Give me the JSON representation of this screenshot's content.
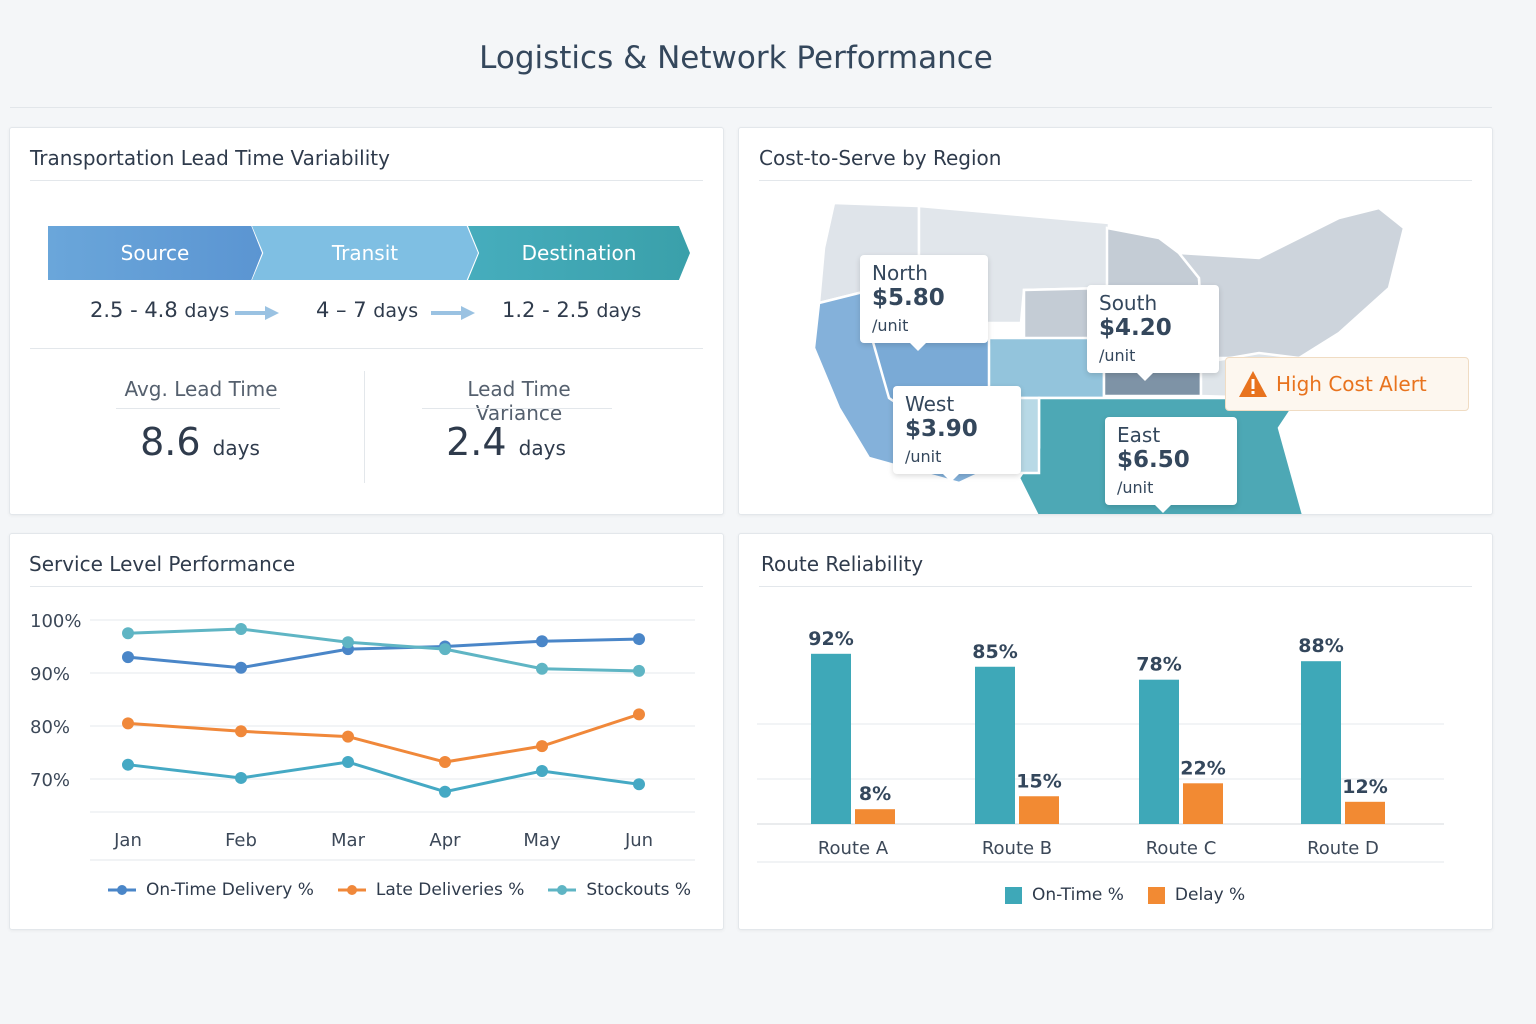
{
  "title": "Logistics & Network Performance",
  "lead_time": {
    "title": "Transportation Lead Time Variability",
    "stages": [
      {
        "label": "Source",
        "range": "2.5 - 4.8",
        "unit": "days",
        "color": "#5b9bd5"
      },
      {
        "label": "Transit",
        "range": "4 – 7",
        "unit": "days",
        "color": "#7dbde0"
      },
      {
        "label": "Destination",
        "range": "1.2 - 2.5",
        "unit": "days",
        "color": "#3aa3ad"
      }
    ],
    "avg_label": "Avg. Lead Time",
    "avg_value": "8.6",
    "avg_unit": "days",
    "var_label": "Lead Time Variance",
    "var_value": "2.4",
    "var_unit": "days"
  },
  "cost": {
    "title": "Cost-to-Serve by Region",
    "regions": [
      {
        "name": "North",
        "price": "$5.80",
        "unit": "/unit"
      },
      {
        "name": "South",
        "price": "$4.20",
        "unit": "/unit"
      },
      {
        "name": "West",
        "price": "$3.90",
        "unit": "/unit"
      },
      {
        "name": "East",
        "price": "$6.50",
        "unit": "/unit"
      }
    ],
    "alert": "High Cost Alert",
    "alert_icon": "warning-triangle-icon",
    "alert_color": "#e8731e"
  },
  "chart_data": [
    {
      "type": "line",
      "title": "Service Level Performance",
      "categories": [
        "Jan",
        "Feb",
        "Mar",
        "Apr",
        "May",
        "Jun"
      ],
      "ylim": [
        62,
        100
      ],
      "yticks": [
        "100%",
        "90%",
        "80%",
        "70%"
      ],
      "grid": true,
      "legend": "bottom",
      "series": [
        {
          "name": "On-Time Delivery %",
          "color": "#4a86c8",
          "values": [
            93,
            91,
            94.5,
            95,
            96,
            96.4
          ]
        },
        {
          "name": "Late Deliveries %",
          "color": "#f0883a",
          "values": [
            80.5,
            79,
            78,
            73.2,
            76.2,
            82.2
          ]
        },
        {
          "name": "Stockouts %",
          "color": "#5fb5c4",
          "values": [
            97.5,
            98.3,
            95.8,
            94.5,
            90.8,
            90.4
          ]
        },
        {
          "color": "#45a9c4",
          "values": [
            72.7,
            70.2,
            73.2,
            67.6,
            71.5,
            69
          ]
        }
      ]
    },
    {
      "type": "bar",
      "title": "Route Reliability",
      "categories": [
        "Route A",
        "Route B",
        "Route C",
        "Route D"
      ],
      "ylim": [
        0,
        100
      ],
      "legend": "bottom",
      "series": [
        {
          "name": "On-Time %",
          "color": "#3ea8b8",
          "values": [
            92,
            85,
            78,
            88
          ]
        },
        {
          "name": "Delay %",
          "color": "#f28a33",
          "values": [
            8,
            15,
            22,
            12
          ]
        }
      ]
    }
  ]
}
